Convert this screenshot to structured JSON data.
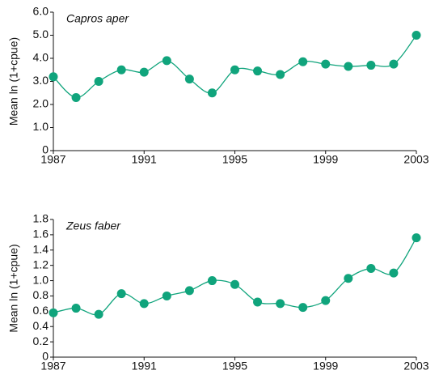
{
  "chart_data": [
    {
      "type": "line",
      "title": "Capros aper",
      "y_label": "Mean ln (1+cpue)",
      "x": [
        1987,
        1988,
        1989,
        1990,
        1991,
        1992,
        1993,
        1994,
        1995,
        1996,
        1997,
        1998,
        1999,
        2000,
        2001,
        2002,
        2003
      ],
      "values": [
        3.2,
        2.3,
        3.0,
        3.5,
        3.4,
        3.9,
        3.1,
        2.5,
        3.5,
        3.45,
        3.3,
        3.85,
        3.75,
        3.65,
        3.7,
        3.75,
        5.0
      ],
      "color": "#10a47c",
      "xlim": [
        1987,
        2003
      ],
      "xticks": [
        1987,
        1991,
        1995,
        1999,
        2003
      ],
      "ylim": [
        0,
        6
      ],
      "yticks": [
        0,
        {
          "value": 1,
          "label": "1.0"
        },
        {
          "value": 2,
          "label": "2.0"
        },
        {
          "value": 3,
          "label": "3.0"
        },
        {
          "value": 4,
          "label": "4.0"
        },
        {
          "value": 5,
          "label": "5.0"
        },
        {
          "value": 6,
          "label": "6.0"
        }
      ]
    },
    {
      "type": "line",
      "title": "Zeus faber",
      "y_label": "Mean ln (1+cpue)",
      "x": [
        1987,
        1988,
        1989,
        1990,
        1991,
        1992,
        1993,
        1994,
        1995,
        1996,
        1997,
        1998,
        1999,
        2000,
        2001,
        2002,
        2003
      ],
      "values": [
        0.58,
        0.64,
        0.56,
        0.83,
        0.7,
        0.8,
        0.87,
        1.0,
        0.95,
        0.72,
        0.7,
        0.65,
        0.74,
        1.03,
        1.16,
        1.1,
        1.56
      ],
      "color": "#10a47c",
      "xlim": [
        1987,
        2003
      ],
      "xticks": [
        1987,
        1991,
        1995,
        1999,
        2003
      ],
      "ylim": [
        0,
        1.8
      ],
      "yticks": [
        0,
        0.2,
        0.4,
        0.6,
        0.8,
        {
          "value": 1,
          "label": "1.0"
        },
        1.2,
        1.4,
        1.6,
        1.8
      ]
    }
  ]
}
